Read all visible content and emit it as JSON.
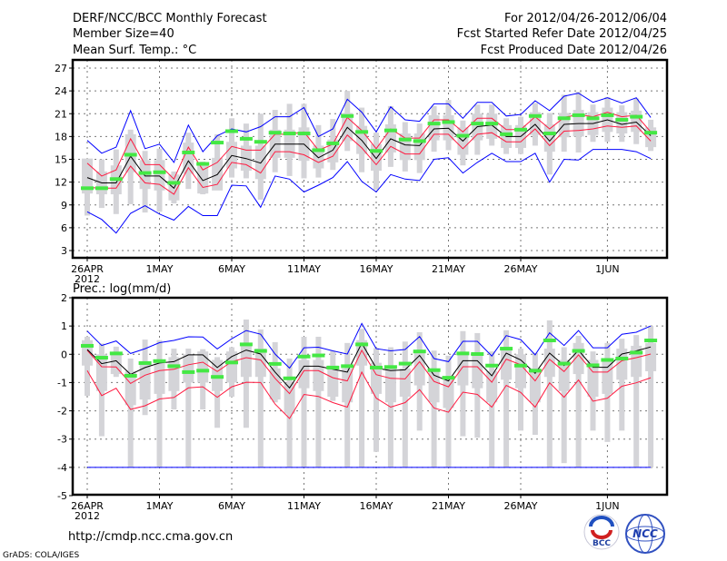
{
  "header": {
    "title": "DERF/NCC/BCC Monthly Forecast",
    "member_size": "Member Size=40",
    "variable_top": "Mean Surf. Temp.: °C",
    "period": "For 2012/04/26-2012/06/04",
    "started": "Fcst Started Refer Date 2012/04/25",
    "produced": "Fcst Produced Date 2012/04/26"
  },
  "footer": {
    "url": "http://cmdp.ncc.cma.gov.cn",
    "credit": "GrADS: COLA/IGES",
    "logo_bcc": "BCC",
    "logo_ncc": "NCC"
  },
  "colors": {
    "max_min": "#0000ff",
    "spread": "#ff1a40",
    "mean": "#000000",
    "observed": "#44e844",
    "box": "#d4d4d8"
  },
  "chart_data": [
    {
      "type": "line",
      "title": "Mean Surf. Temp.: °C",
      "x_tick_days": [
        0,
        5,
        10,
        15,
        20,
        25,
        30,
        36
      ],
      "x_tick_labels": [
        "26APR",
        "1MAY",
        "6MAY",
        "11MAY",
        "16MAY",
        "21MAY",
        "26MAY",
        "1JUN"
      ],
      "x_sub_label": "2012",
      "ylim": [
        2,
        28
      ],
      "y_ticks": [
        3,
        6,
        9,
        12,
        15,
        18,
        21,
        24,
        27
      ],
      "grid": true,
      "series": [
        {
          "name": "max",
          "color_key": "max_min",
          "values": [
            17.5,
            15.8,
            16.6,
            21.4,
            16.4,
            17,
            14.6,
            19.5,
            16,
            18.1,
            19,
            18.6,
            19.3,
            20.6,
            20.6,
            21.8,
            18,
            19,
            22.9,
            21.2,
            18.6,
            21.9,
            20.2,
            20,
            22.3,
            22.3,
            20.4,
            22.5,
            22.5,
            20.7,
            20.9,
            22.7,
            21.4,
            23.3,
            23.7,
            22.5,
            23.1,
            22.4,
            23.1,
            20.5
          ]
        },
        {
          "name": "min",
          "color_key": "max_min",
          "values": [
            8.1,
            7.1,
            5.3,
            7.9,
            8.9,
            7.8,
            7,
            8.8,
            7.6,
            7.6,
            11.6,
            11.5,
            8.7,
            12.8,
            12.4,
            10.7,
            11.6,
            12.6,
            14.7,
            12.1,
            10.7,
            13,
            12.4,
            12.2,
            15,
            15.2,
            13.2,
            14.6,
            15.8,
            14.7,
            14.7,
            15.8,
            12,
            15,
            14.9,
            16.3,
            16.3,
            16.3,
            16,
            15.1
          ]
        },
        {
          "name": "upper",
          "color_key": "spread",
          "values": [
            14.5,
            12.8,
            13.6,
            17.7,
            14.3,
            14.3,
            12.4,
            16.6,
            13.6,
            14.6,
            16.7,
            16.2,
            16.2,
            18.3,
            18.3,
            18.6,
            16.2,
            17,
            20.5,
            18.8,
            16.4,
            19,
            17.8,
            17.8,
            20.2,
            20.2,
            18.6,
            20.4,
            20.4,
            18.9,
            18.9,
            20.6,
            19,
            20.5,
            20.9,
            20.6,
            21.2,
            20.6,
            20.8,
            18.6
          ]
        },
        {
          "name": "lower",
          "color_key": "spread",
          "values": [
            11.3,
            11.2,
            11.2,
            14.1,
            11.9,
            11.7,
            10.4,
            13.9,
            11.3,
            11.7,
            14.6,
            14.3,
            13.2,
            16,
            16,
            15.6,
            14.6,
            15.4,
            18.2,
            16.5,
            14.3,
            16.7,
            15.7,
            15.7,
            18.3,
            18.3,
            16.4,
            18.3,
            18.5,
            17.3,
            17.3,
            19,
            16.8,
            18.7,
            18.8,
            19,
            19.4,
            19.2,
            19.4,
            17.4
          ]
        },
        {
          "name": "mean",
          "color_key": "mean",
          "values": [
            12.6,
            11.9,
            11.9,
            15.4,
            12.8,
            12.8,
            11.2,
            14.8,
            12.2,
            13,
            15.5,
            15.1,
            14.5,
            17,
            17,
            17,
            15.2,
            16.2,
            19.2,
            17.5,
            15.1,
            17.7,
            16.9,
            16.8,
            19,
            19.1,
            17.4,
            19.3,
            19.5,
            18,
            18,
            19.6,
            17.4,
            19.6,
            19.7,
            19.7,
            20.2,
            19.6,
            19.9,
            18.1
          ]
        }
      ],
      "observed": [
        11.2,
        11.2,
        12.4,
        15.6,
        13.2,
        13.3,
        11.9,
        15.9,
        14.4,
        17.2,
        18.7,
        17.7,
        17.3,
        18.5,
        18.4,
        18.4,
        16.2,
        17.1,
        20.7,
        18.6,
        16.1,
        18.8,
        17.6,
        17.4,
        19.7,
        19.9,
        18.1,
        19.7,
        19.7,
        18.3,
        18.9,
        20.7,
        18.4,
        20.4,
        20.8,
        20.4,
        20.8,
        20.2,
        20.6,
        18.5
      ],
      "box_low": [
        10.5,
        10.4,
        10.4,
        13.3,
        11.1,
        10.9,
        9.6,
        13.1,
        10.5,
        10.9,
        13.8,
        13.5,
        12.4,
        15.2,
        15.2,
        14.8,
        13.8,
        14.6,
        17.4,
        15.7,
        13.5,
        15.9,
        14.9,
        14.9,
        17.5,
        17.5,
        15.6,
        17.5,
        17.7,
        16.5,
        16.5,
        18.2,
        16,
        17.9,
        18,
        18.2,
        18.6,
        18.4,
        18.6,
        16.6
      ],
      "box_high": [
        15.1,
        13.4,
        14.2,
        18.3,
        14.9,
        14.9,
        13,
        17.2,
        14.2,
        15.2,
        17.3,
        16.8,
        16.8,
        18.9,
        18.9,
        19.2,
        16.8,
        17.6,
        21.1,
        19.4,
        17,
        19.6,
        18.4,
        18.4,
        20.8,
        20.8,
        19.2,
        21,
        21,
        19.5,
        19.5,
        21.2,
        19.6,
        21.1,
        21.5,
        21.2,
        21.8,
        21.2,
        21.4,
        19.2
      ],
      "whisker_low": [
        7.6,
        8.6,
        7.8,
        9.1,
        8,
        8.1,
        9.2,
        11.1,
        10.4,
        11.2,
        12.6,
        12.5,
        9.7,
        13.3,
        12.8,
        12.5,
        12.6,
        13.6,
        16.1,
        13.3,
        11,
        14,
        13.4,
        13.2,
        16,
        16.2,
        14.2,
        15.6,
        16.8,
        15.7,
        15.7,
        16.8,
        13,
        16,
        15.9,
        17.3,
        17.3,
        17.3,
        17,
        16.1
      ],
      "whisker_high": [
        14.2,
        15,
        16.3,
        18.9,
        16.1,
        16.4,
        13.4,
        18.5,
        14.7,
        18.3,
        20.4,
        19.7,
        21,
        21.5,
        22.3,
        22.3,
        19.5,
        20.3,
        24,
        21.8,
        18.5,
        22,
        19.9,
        19.7,
        22,
        22.8,
        20.1,
        22.2,
        22.2,
        20.4,
        20.6,
        22.4,
        21.1,
        23.5,
        23.9,
        22.2,
        23.2,
        22.1,
        23,
        20.2
      ]
    },
    {
      "type": "line",
      "title": "Prec.: log(mm/d)",
      "x_tick_days": [
        0,
        5,
        10,
        15,
        20,
        25,
        30,
        36
      ],
      "x_tick_labels": [
        "26APR",
        "1MAY",
        "6MAY",
        "11MAY",
        "16MAY",
        "21MAY",
        "26MAY",
        "1JUN"
      ],
      "x_sub_label": "2012",
      "ylim": [
        -5,
        2
      ],
      "y_ticks": [
        -5,
        -4,
        -3,
        -2,
        -1,
        0,
        1,
        2
      ],
      "grid": true,
      "series": [
        {
          "name": "max",
          "color_key": "max_min",
          "values": [
            0.82,
            0.31,
            0.47,
            0.03,
            0.2,
            0.41,
            0.49,
            0.62,
            0.61,
            0.19,
            0.55,
            0.84,
            0.71,
            0.01,
            -0.49,
            0.23,
            0.25,
            0.12,
            0.01,
            1.09,
            0.2,
            0.12,
            0.17,
            0.63,
            -0.15,
            -0.26,
            0.46,
            0.46,
            -0.06,
            0.66,
            0.52,
            -0.02,
            0.76,
            0.31,
            0.84,
            0.23,
            0.23,
            0.71,
            0.78,
            1.0
          ]
        },
        {
          "name": "min",
          "color_key": "max_min",
          "values": [
            -4,
            -4,
            -4,
            -4,
            -4,
            -4,
            -4,
            -4,
            -4,
            -4,
            -4,
            -4,
            -4,
            -4,
            -4,
            -4,
            -4,
            -4,
            -4,
            -4,
            -4,
            -4,
            -4,
            -4,
            -4,
            -4,
            -4,
            -4,
            -4,
            -4,
            -4,
            -4,
            -4,
            -4,
            -4,
            -4,
            -4,
            -4,
            -4,
            -4
          ]
        },
        {
          "name": "upper",
          "color_key": "spread",
          "values": [
            0.14,
            -0.44,
            -0.45,
            -1.03,
            -0.74,
            -0.58,
            -0.53,
            -0.37,
            -0.28,
            -0.61,
            -0.26,
            -0.12,
            -0.2,
            -0.85,
            -1.39,
            -0.58,
            -0.58,
            -0.83,
            -0.94,
            0.14,
            -0.72,
            -0.85,
            -0.87,
            -0.26,
            -0.96,
            -1.15,
            -0.44,
            -0.44,
            -0.99,
            -0.17,
            -0.37,
            -0.94,
            -0.18,
            -0.61,
            -0.02,
            -0.63,
            -0.63,
            -0.23,
            -0.12,
            0.01
          ]
        },
        {
          "name": "lower",
          "color_key": "spread",
          "values": [
            -0.58,
            -1.46,
            -1.2,
            -1.95,
            -1.82,
            -1.58,
            -1.53,
            -1.19,
            -1.15,
            -1.52,
            -1.15,
            -0.99,
            -1.0,
            -1.76,
            -2.27,
            -1.42,
            -1.49,
            -1.71,
            -1.87,
            -0.63,
            -1.55,
            -1.87,
            -1.71,
            -1.25,
            -1.9,
            -2.05,
            -1.34,
            -1.42,
            -1.87,
            -1.1,
            -1.35,
            -1.87,
            -1.01,
            -1.52,
            -0.91,
            -1.66,
            -1.55,
            -1.13,
            -1.01,
            -0.83
          ]
        },
        {
          "name": "mean",
          "color_key": "mean",
          "values": [
            0.17,
            -0.33,
            -0.23,
            -0.71,
            -0.47,
            -0.31,
            -0.26,
            -0.02,
            -0.02,
            -0.47,
            -0.08,
            0.15,
            0.01,
            -0.63,
            -1.19,
            -0.42,
            -0.42,
            -0.53,
            -0.63,
            0.39,
            -0.49,
            -0.58,
            -0.55,
            -0.04,
            -0.74,
            -0.94,
            -0.23,
            -0.23,
            -0.76,
            0.04,
            -0.2,
            -0.67,
            0.04,
            -0.4,
            0.14,
            -0.46,
            -0.46,
            0.01,
            0.12,
            0.26
          ]
        }
      ],
      "observed": [
        0.3,
        -0.12,
        0.03,
        -0.76,
        -0.31,
        -0.24,
        -0.42,
        -0.63,
        -0.58,
        -0.8,
        -0.29,
        0.35,
        0.12,
        -0.34,
        -0.85,
        -0.08,
        -0.04,
        -0.47,
        -0.42,
        0.35,
        -0.47,
        -0.45,
        -0.33,
        0.1,
        -0.56,
        -0.83,
        0.03,
        0.01,
        -0.4,
        0.2,
        -0.4,
        -0.58,
        0.49,
        -0.33,
        0.12,
        -0.39,
        -0.2,
        -0.15,
        0.06,
        0.49
      ],
      "box_low": [
        -0.4,
        -1.3,
        -0.7,
        -1.8,
        -1.6,
        -1.4,
        -1.3,
        -1.0,
        -1.0,
        -1.3,
        -1.0,
        -0.8,
        -0.8,
        -1.6,
        -2.1,
        -1.2,
        -1.3,
        -1.5,
        -1.7,
        -0.4,
        -1.4,
        -1.7,
        -1.5,
        -1.1,
        -1.7,
        -1.9,
        -1.1,
        -1.2,
        -1.7,
        -0.9,
        -1.2,
        -1.7,
        -0.8,
        -1.3,
        -0.7,
        -1.5,
        -1.4,
        -0.9,
        -0.8,
        -0.6
      ],
      "box_high": [
        0.5,
        0,
        0,
        -0.6,
        -0.3,
        -0.2,
        -0.1,
        0,
        0.1,
        -0.2,
        0.1,
        0.3,
        0.2,
        -0.5,
        -1.0,
        -0.2,
        -0.2,
        -0.4,
        -0.5,
        0.5,
        -0.3,
        -0.5,
        -0.5,
        0.1,
        -0.6,
        -0.8,
        0,
        0,
        -0.6,
        0.2,
        0,
        -0.5,
        0.2,
        -0.2,
        0.4,
        -0.2,
        -0.2,
        0.2,
        0.3,
        0.4
      ],
      "whisker_low": [
        -1.47,
        -2.9,
        -0.8,
        -4,
        -2.15,
        -4,
        -1.95,
        -4,
        -1.95,
        -2.6,
        -1.5,
        -2.6,
        -4,
        -1.7,
        -4,
        -4,
        -4,
        -1.65,
        -4,
        -4,
        -3.45,
        -4,
        -4,
        -2.7,
        -4,
        -4,
        -2.9,
        -2.95,
        -4,
        -4,
        -2.7,
        -2.85,
        -4,
        -3.85,
        -4,
        -2.7,
        -3.1,
        -2.7,
        -4,
        -4
      ],
      "whisker_high": [
        0.62,
        0.38,
        0.27,
        -0.15,
        0.52,
        0.5,
        0.2,
        0.2,
        0.18,
        -0.1,
        0.25,
        1.23,
        0.88,
        0.43,
        -0.15,
        0.62,
        0.62,
        0.12,
        0.4,
        0.9,
        0.22,
        0.25,
        0.45,
        0.78,
        0.13,
        -0.05,
        0.82,
        0.75,
        0.1,
        0.85,
        0.2,
        0.05,
        1.2,
        0.25,
        0.65,
        0.1,
        0.4,
        0.55,
        0.68,
        1.0
      ]
    }
  ]
}
